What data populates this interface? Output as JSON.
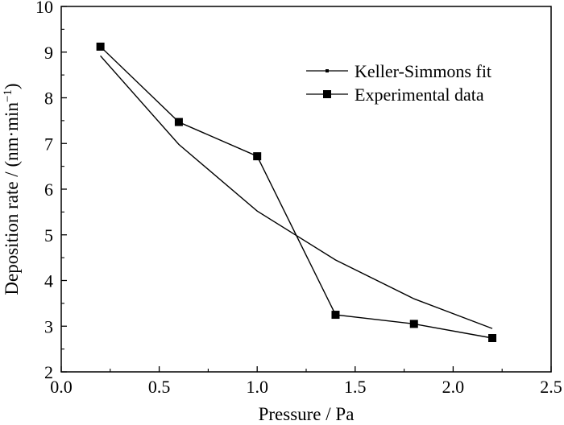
{
  "chart_data": {
    "type": "line",
    "xlabel": "Pressure / Pa",
    "ylabel_main": "Deposition rate / (nm·min",
    "ylabel_sup": "−1",
    "ylabel_close": ")",
    "xlim": [
      0.0,
      2.5
    ],
    "ylim": [
      2,
      10
    ],
    "x_ticks": [
      "0.0",
      "0.5",
      "1.0",
      "1.5",
      "2.0",
      "2.5"
    ],
    "x_tick_values": [
      0.0,
      0.5,
      1.0,
      1.5,
      2.0,
      2.5
    ],
    "y_ticks": [
      "2",
      "3",
      "4",
      "5",
      "6",
      "7",
      "8",
      "9",
      "10"
    ],
    "y_tick_values": [
      2,
      3,
      4,
      5,
      6,
      7,
      8,
      9,
      10
    ],
    "grid": false,
    "legend_position": "top-right",
    "series": [
      {
        "name": "Keller-Simmons fit",
        "marker": "small-square",
        "x": [
          0.2,
          0.6,
          1.0,
          1.4,
          1.8,
          2.2
        ],
        "y": [
          8.92,
          6.98,
          5.52,
          4.45,
          3.6,
          2.95
        ]
      },
      {
        "name": "Experimental data",
        "marker": "square",
        "x": [
          0.2,
          0.6,
          1.0,
          1.4,
          1.8,
          2.2
        ],
        "y": [
          9.12,
          7.47,
          6.72,
          3.25,
          3.05,
          2.74
        ]
      }
    ]
  }
}
